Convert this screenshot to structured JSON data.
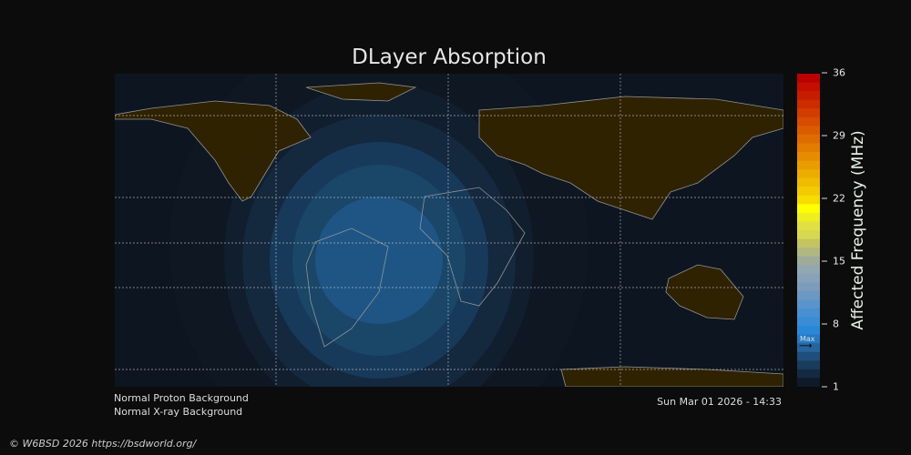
{
  "title": "DLayer Absorption",
  "colorbar": {
    "label": "Affected Frequency (MHz)",
    "ticks": [
      "36",
      "29",
      "22",
      "15",
      "8",
      "1"
    ],
    "min": 1,
    "max": 36,
    "max_marker_label": "Max",
    "max_marker_value": 5.5,
    "colors": [
      "#bb0000",
      "#c30e00",
      "#c81c00",
      "#cc2c00",
      "#d23c00",
      "#d64c00",
      "#db5c00",
      "#df6c00",
      "#e37c00",
      "#e68c00",
      "#e99c00",
      "#ecac00",
      "#efbc00",
      "#f2cc00",
      "#f6dc00",
      "#ffff00",
      "#eeee20",
      "#e2e040",
      "#d6d850",
      "#c4c460",
      "#b0b880",
      "#a0aa98",
      "#92a8b0",
      "#88a2b8",
      "#7c9cbc",
      "#6c98c4",
      "#5a94ca",
      "#4890d0",
      "#3a8cd4",
      "#2a88d8",
      "#2878c0",
      "#26649c",
      "#1e4e7c",
      "#1a3c5c",
      "#142a40",
      "#0e1a28"
    ]
  },
  "status": {
    "proton": "Normal Proton Background",
    "xray": "Normal X-ray Background",
    "timestamp": "Sun Mar 01 2026 - 14:33"
  },
  "copyright": "© W6BSD 2026 https://bsdworld.org/",
  "map_colors": {
    "ocean": "#0d1520",
    "land": "#312300",
    "coast": "#999999",
    "grid": "#cccccc"
  }
}
